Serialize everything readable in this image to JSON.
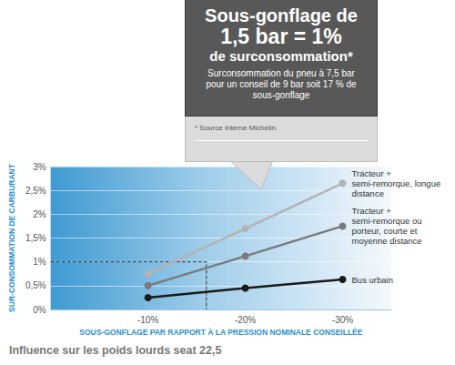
{
  "chart_data": {
    "type": "line",
    "title": "Influence sur les poids lourds seat 22,5",
    "xlabel": "SOUS-GONFLAGE PAR RAPPORT À LA PRESSION NOMINALE CONSEILLÉE",
    "ylabel": "SUR-CONSOMMATION DE CARBURANT",
    "x": [
      -10,
      -20,
      -30
    ],
    "xlim": [
      0,
      -35
    ],
    "xticks": [
      {
        "value": -10,
        "label": "-10%"
      },
      {
        "value": -20,
        "label": "-20%"
      },
      {
        "value": -30,
        "label": "-30%"
      }
    ],
    "ylim": [
      0,
      3
    ],
    "yticks": [
      {
        "value": 0,
        "label": "0%"
      },
      {
        "value": 0.5,
        "label": "0,5%"
      },
      {
        "value": 1,
        "label": "1%"
      },
      {
        "value": 1.5,
        "label": "1,5%"
      },
      {
        "value": 2,
        "label": "2%"
      },
      {
        "value": 2.5,
        "label": "2,5%"
      },
      {
        "value": 3,
        "label": "3%"
      }
    ],
    "grid": true,
    "series": [
      {
        "name": "Tracteur + semi-remorque, longue distance",
        "color": "#b3b3b3",
        "marker": "circle",
        "values": [
          0.75,
          1.7,
          2.65
        ]
      },
      {
        "name": "Tracteur + semi-remorque ou porteur, courte et moyenne distance",
        "color": "#7a7a7a",
        "marker": "circle",
        "values": [
          0.5,
          1.12,
          1.75
        ]
      },
      {
        "name": "Bus urbain",
        "color": "#1a1a1a",
        "marker": "circle",
        "values": [
          0.25,
          0.45,
          0.63
        ]
      },
      {
        "color": "#333333",
        "marker": "none",
        "line_style": "dashed",
        "x": [
          0,
          -16,
          -16
        ],
        "values": [
          1,
          1,
          0
        ]
      }
    ],
    "callout": {
      "headline": [
        "Sous-gonflage de",
        "1,5 bar = 1%",
        "de surconsommation*"
      ],
      "text": "Surconsommation du pneu à 7,5 bar pour un conseil de 9 bar soit 17 % de sous-gonflage",
      "note": "* Source interne Michelin."
    }
  }
}
